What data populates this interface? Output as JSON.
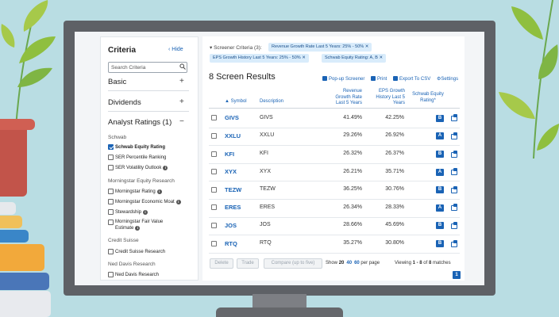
{
  "criteria": {
    "title": "Criteria",
    "hide_label": "Hide",
    "search_placeholder": "Search Criteria",
    "sections": [
      {
        "label": "Basic",
        "toggle": "+"
      },
      {
        "label": "Dividends",
        "toggle": "+"
      },
      {
        "label": "Analyst Ratings (1)",
        "toggle": "−"
      }
    ],
    "groups": [
      {
        "label": "Schwab",
        "items": [
          {
            "label": "Schwab Equity Rating",
            "checked": true,
            "info": false
          },
          {
            "label": "SER Percentile Ranking",
            "checked": false,
            "info": false
          },
          {
            "label": "SER Volatility Outlook",
            "checked": false,
            "info": true
          }
        ]
      },
      {
        "label": "Morningstar Equity Research",
        "items": [
          {
            "label": "Morningstar Rating",
            "checked": false,
            "info": true
          },
          {
            "label": "Morningstar Economic Moat",
            "checked": false,
            "info": true
          },
          {
            "label": "Stewardship",
            "checked": false,
            "info": true
          },
          {
            "label": "Morningstar Fair Value",
            "label2": "Estimate",
            "checked": false,
            "info": true
          }
        ]
      },
      {
        "label": "Credit Suisse",
        "items": [
          {
            "label": "Credit Suisse Research",
            "checked": false,
            "info": false
          }
        ]
      },
      {
        "label": "Ned Davis Research",
        "items": [
          {
            "label": "Ned Davis Research",
            "checked": false,
            "info": false
          }
        ]
      }
    ]
  },
  "screener": {
    "caption": "▾ Screener Criteria (3):",
    "chips": [
      "Revenue Growth Rate Last 5 Years: 25% - 50% ✕",
      "EPS Growth History Last 5 Years: 25% - 50% ✕",
      "Schwab Equity Rating: A, B ✕"
    ],
    "results_title": "8 Screen Results",
    "tools": [
      "Pop-up Screener",
      "Print",
      "Export To CSV",
      "Settings"
    ],
    "columns": {
      "symbol": "▲ Symbol",
      "description": "Description",
      "revenue": [
        "Revenue",
        "Growth Rate",
        "Last 5 Years"
      ],
      "eps": [
        "EPS Growth",
        "History Last 5",
        "Years"
      ],
      "rating": [
        "Schwab Equity",
        "Rating*"
      ]
    },
    "rows": [
      {
        "symbol": "GIVS",
        "description": "GIVS",
        "revenue": "41.49%",
        "eps": "42.25%",
        "rating": "B"
      },
      {
        "symbol": "XXLU",
        "description": "XXLU",
        "revenue": "29.26%",
        "eps": "26.92%",
        "rating": "A"
      },
      {
        "symbol": "KFI",
        "description": "KFI",
        "revenue": "26.32%",
        "eps": "26.37%",
        "rating": "B"
      },
      {
        "symbol": "XYX",
        "description": "XYX",
        "revenue": "26.21%",
        "eps": "35.71%",
        "rating": "A"
      },
      {
        "symbol": "TEZW",
        "description": "TEZW",
        "revenue": "36.25%",
        "eps": "30.76%",
        "rating": "B"
      },
      {
        "symbol": "ERES",
        "description": "ERES",
        "revenue": "26.34%",
        "eps": "28.33%",
        "rating": "A"
      },
      {
        "symbol": "JOS",
        "description": "JOS",
        "revenue": "28.66%",
        "eps": "45.69%",
        "rating": "B"
      },
      {
        "symbol": "RTQ",
        "description": "RTQ",
        "revenue": "35.27%",
        "eps": "30.80%",
        "rating": "B"
      }
    ],
    "buttons": [
      "Delete",
      "Trade",
      "Compare (up to five)"
    ],
    "show_label": "Show",
    "per_page_options": [
      "20",
      "40",
      "60"
    ],
    "per_page_suffix": "per page",
    "viewing_prefix": "Viewing",
    "viewing_range": "1 - 8",
    "viewing_of": "of",
    "viewing_total": "8",
    "viewing_suffix": "matches",
    "current_page": "1"
  },
  "colors": {
    "accent": "#1a63b5",
    "chip_bg": "#d9ecfb",
    "monitor": "#5e6166",
    "background": "#b9dde3"
  }
}
